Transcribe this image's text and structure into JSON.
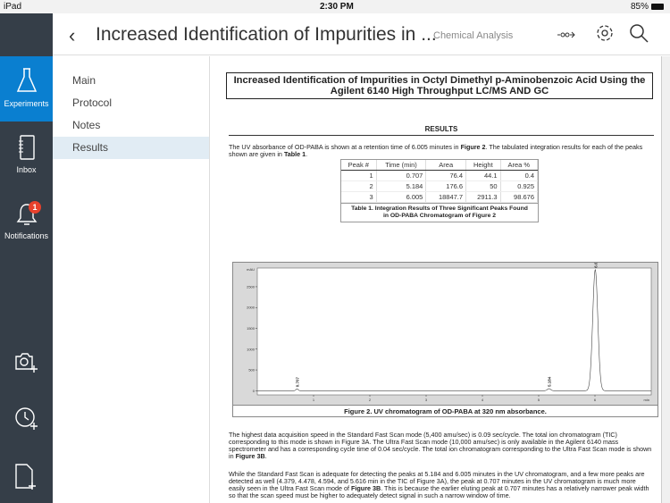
{
  "status": {
    "device": "iPad",
    "time": "2:30 PM",
    "battery": "85%"
  },
  "rail": {
    "items": [
      {
        "label": "Experiments",
        "icon": "flask-icon",
        "active": true
      },
      {
        "label": "Inbox",
        "icon": "inbox-icon"
      },
      {
        "label": "Notifications",
        "icon": "bell-icon",
        "badge": "1"
      }
    ],
    "actions": [
      "camera-add-icon",
      "clock-add-icon",
      "file-add-icon"
    ]
  },
  "header": {
    "title": "Increased Identification of Impurities in ...",
    "subtitle": "Chemical Analysis",
    "icons": [
      "share-icon",
      "gear-icon",
      "search-icon"
    ]
  },
  "subnav": {
    "items": [
      "Main",
      "Protocol",
      "Notes",
      "Results"
    ],
    "selected": "Results"
  },
  "doc": {
    "title": "Increased Identification of Impurities in Octyl Dimethyl p-Aminobenzoic Acid Using the Agilent 6140 High Throughput LC/MS AND GC",
    "section": "RESULTS",
    "p1a": "The UV absorbance of OD-PABA is shown at a retention time of 6.005 minutes in ",
    "p1b": "Figure 2",
    "p1c": ". The tabulated integration results for each of the peaks shown are given in ",
    "p1d": "Table 1",
    "p1e": ".",
    "table": {
      "headers": [
        "Peak #",
        "Time (min)",
        "Area",
        "Height",
        "Area %"
      ],
      "rows": [
        [
          "1",
          "0.707",
          "76.4",
          "44.1",
          "0.4"
        ],
        [
          "2",
          "5.184",
          "176.6",
          "50",
          "0.925"
        ],
        [
          "3",
          "6.005",
          "18847.7",
          "2911.3",
          "98.676"
        ]
      ],
      "caption1": "Table 1. Integration Results of Three Significant Peaks Found",
      "caption2": "in OD-PABA Chromatogram of Figure 2"
    },
    "figure_caption": "Figure 2. UV chromatogram of OD-PABA at 320 nm absorbance.",
    "p2a": "The highest data acquisition speed in the Standard Fast Scan mode (5,400 amu/sec) is 0.09 sec/cycle. The total ion chromatogram (TIC) corresponding to this mode is shown in Figure 3A. The Ultra Fast Scan mode (10,000 amu/sec) is only available in the Agilent 6140 mass spectrometer and has a corresponding cycle time of 0.04 sec/cycle. The total ion chromatogram corresponding to the Ultra Fast Scan mode is shown in ",
    "p2b": "Figure 3B",
    "p2c": ".",
    "p3a": "While the Standard Fast Scan is adequate for detecting the peaks at 5.184 and 6.005 minutes in the UV chromatogram, and a few more peaks are detected as well (4.379, 4.478, 4.594, and 5.616 min in the TIC of Figure 3A), the peak at 0.707 minutes in the UV chromatogram is much more easily seen in the Ultra Fast Scan mode of ",
    "p3b": "Figure 3B",
    "p3c": ". This is because the earlier eluting peak at 0.707 minutes has a relatively narrower peak width so that the scan speed must be higher to adequately detect signal in such a narrow window of time."
  },
  "chart_data": {
    "type": "line",
    "ylabel": "mAU",
    "xlabel": "min",
    "xlim": [
      0,
      7
    ],
    "ylim": [
      -100,
      2950
    ],
    "yticks": [
      "0",
      "500",
      "1000",
      "1500",
      "2000",
      "2500"
    ],
    "xticks": [
      "1",
      "2",
      "3",
      "4",
      "5",
      "6"
    ],
    "peaks": [
      {
        "x": 0.707,
        "y": 44.1,
        "label": "0.707"
      },
      {
        "x": 5.184,
        "y": 50,
        "label": "5.184"
      },
      {
        "x": 6.005,
        "y": 2911.3,
        "label": "6.005"
      }
    ]
  }
}
